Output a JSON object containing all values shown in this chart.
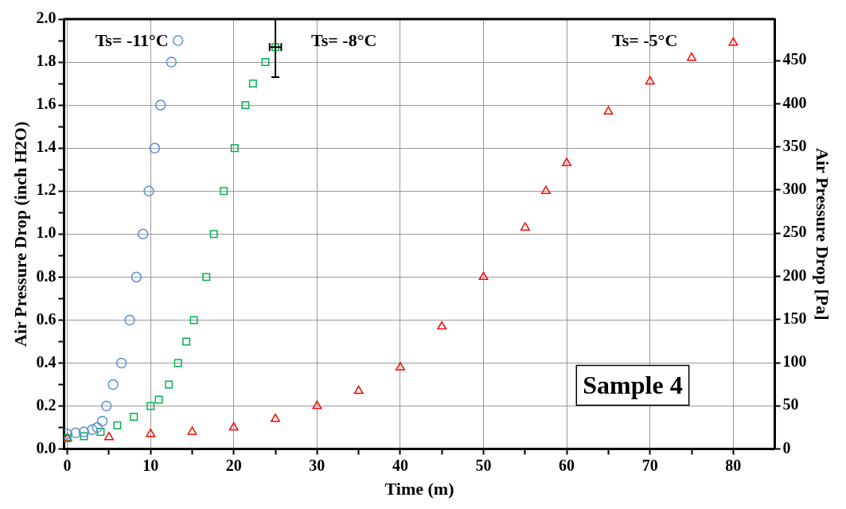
{
  "chart_data": {
    "type": "scatter",
    "xlabel": "Time (m)",
    "ylabel": "Air Pressure Drop (inch H2O)",
    "y2label": "Air Pressure Drop [Pa]",
    "xlim": [
      -0.4,
      85
    ],
    "xticks": [
      0,
      {
        "value": 5,
        "label": null
      },
      10,
      {
        "value": 15,
        "label": null
      },
      20,
      {
        "value": 25,
        "label": null
      },
      30,
      {
        "value": 35,
        "label": null
      },
      40,
      {
        "value": 45,
        "label": null
      },
      50,
      {
        "value": 55,
        "label": null
      },
      60,
      {
        "value": 65,
        "label": null
      },
      70,
      {
        "value": 75,
        "label": null
      },
      80
    ],
    "ylim": [
      0,
      2
    ],
    "yticks": [
      {
        "value": 0,
        "label": "0.0"
      },
      {
        "value": 0.1,
        "label": null
      },
      0.2,
      {
        "value": 0.3,
        "label": null
      },
      0.4,
      {
        "value": 0.5,
        "label": null
      },
      0.6,
      {
        "value": 0.7,
        "label": null
      },
      0.8,
      {
        "value": 0.9,
        "label": null
      },
      {
        "value": 1,
        "label": "1.0"
      },
      {
        "value": 1.1,
        "label": null
      },
      1.2,
      {
        "value": 1.3,
        "label": null
      },
      1.4,
      {
        "value": 1.5,
        "label": null
      },
      1.6,
      {
        "value": 1.7,
        "label": null
      },
      1.8,
      {
        "value": 1.9,
        "label": null
      },
      {
        "value": 2,
        "label": "2.0"
      }
    ],
    "y2lim": [
      0,
      498
    ],
    "y2ticks": [
      0,
      50,
      100,
      150,
      200,
      250,
      300,
      350,
      400,
      450
    ],
    "grid": true,
    "legend": false,
    "annotations": [
      "Sample 4"
    ],
    "series": [
      {
        "name": "Ts= -11°C",
        "color": "#5b8fd6",
        "marker": "circle",
        "x": [
          0,
          1,
          2,
          3,
          3.6,
          4.2,
          4.7,
          5.5,
          6.5,
          7.5,
          8.3,
          9.1,
          9.8,
          10.5,
          11.2,
          12.5,
          13.3
        ],
        "values": [
          0.07,
          0.075,
          0.08,
          0.09,
          0.1,
          0.13,
          0.2,
          0.3,
          0.4,
          0.6,
          0.8,
          1.0,
          1.2,
          1.4,
          1.6,
          1.8,
          1.9
        ]
      },
      {
        "name": "Ts= -8°C",
        "color": "#00b050",
        "marker": "square",
        "x": [
          0,
          2,
          4,
          6,
          8,
          10,
          11,
          12.2,
          13.3,
          14.3,
          15.2,
          16.7,
          17.6,
          18.8,
          20.1,
          21.4,
          22.3,
          23.8,
          25
        ],
        "values": [
          0.05,
          0.06,
          0.08,
          0.11,
          0.15,
          0.2,
          0.23,
          0.3,
          0.4,
          0.5,
          0.6,
          0.8,
          1.0,
          1.2,
          1.4,
          1.6,
          1.7,
          1.8,
          1.87
        ],
        "errors": [
          null,
          null,
          null,
          null,
          null,
          null,
          null,
          null,
          null,
          null,
          null,
          null,
          null,
          null,
          null,
          null,
          null,
          null,
          [
            1.73,
            2.0
          ]
        ],
        "xerrors": [
          null,
          null,
          null,
          null,
          null,
          null,
          null,
          null,
          null,
          null,
          null,
          null,
          null,
          null,
          null,
          null,
          null,
          null,
          [
            24.3,
            25.7
          ]
        ]
      },
      {
        "name": "Ts= -5°C",
        "color": "#ff0000",
        "marker": "triangle",
        "x": [
          0,
          5,
          10,
          15,
          20,
          25,
          30,
          35,
          40,
          45,
          50,
          55,
          57.5,
          60,
          65,
          70,
          75,
          80
        ],
        "values": [
          0.05,
          0.055,
          0.07,
          0.08,
          0.1,
          0.14,
          0.2,
          0.27,
          0.38,
          0.57,
          0.8,
          1.03,
          1.2,
          1.33,
          1.57,
          1.71,
          1.82,
          1.89
        ]
      }
    ]
  }
}
